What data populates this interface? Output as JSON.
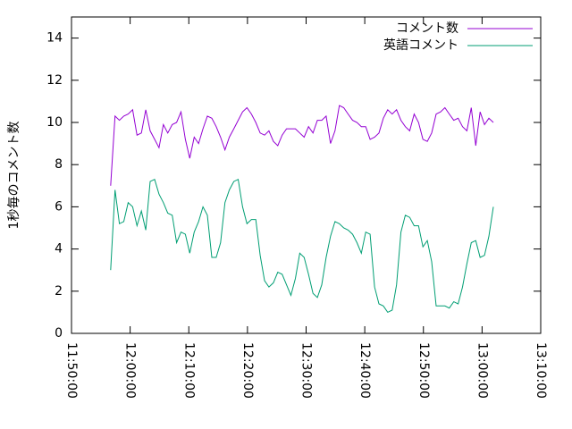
{
  "chart_data": {
    "type": "line",
    "ylabel": "1秒毎のコメント数",
    "x": [
      "11:56:40",
      "11:57:25",
      "11:58:10",
      "11:58:55",
      "11:59:40",
      "12:00:25",
      "12:01:10",
      "12:01:55",
      "12:02:40",
      "12:03:25",
      "12:04:10",
      "12:04:55",
      "12:05:40",
      "12:06:25",
      "12:07:10",
      "12:07:55",
      "12:08:40",
      "12:09:25",
      "12:10:10",
      "12:10:55",
      "12:11:40",
      "12:12:25",
      "12:13:10",
      "12:13:55",
      "12:14:40",
      "12:15:25",
      "12:16:10",
      "12:16:55",
      "12:17:40",
      "12:18:25",
      "12:19:10",
      "12:19:55",
      "12:20:40",
      "12:21:25",
      "12:22:10",
      "12:22:55",
      "12:23:40",
      "12:24:25",
      "12:25:10",
      "12:25:55",
      "12:26:40",
      "12:27:25",
      "12:28:10",
      "12:28:55",
      "12:29:40",
      "12:30:25",
      "12:31:10",
      "12:31:55",
      "12:32:40",
      "12:33:25",
      "12:34:10",
      "12:34:55",
      "12:35:40",
      "12:36:25",
      "12:37:10",
      "12:37:55",
      "12:38:40",
      "12:39:25",
      "12:40:10",
      "12:40:55",
      "12:41:40",
      "12:42:25",
      "12:43:10",
      "12:43:55",
      "12:44:40",
      "12:45:25",
      "12:46:10",
      "12:46:55",
      "12:47:40",
      "12:48:25",
      "12:49:10",
      "12:49:55",
      "12:50:40",
      "12:51:25",
      "12:52:10",
      "12:52:55",
      "12:53:40",
      "12:54:25",
      "12:55:10",
      "12:55:55",
      "12:56:40",
      "12:57:25",
      "12:58:10",
      "12:58:55",
      "12:59:40",
      "13:00:25",
      "13:01:10",
      "13:01:55"
    ],
    "series": [
      {
        "name": "コメント数",
        "color": "#9400d3",
        "values": [
          7.0,
          10.3,
          10.1,
          10.3,
          10.4,
          10.6,
          9.4,
          9.5,
          10.6,
          9.6,
          9.2,
          8.8,
          9.9,
          9.5,
          9.9,
          10.0,
          10.5,
          9.2,
          8.3,
          9.3,
          9.0,
          9.7,
          10.3,
          10.2,
          9.8,
          9.3,
          8.7,
          9.3,
          9.7,
          10.1,
          10.5,
          10.7,
          10.4,
          10.0,
          9.5,
          9.4,
          9.6,
          9.1,
          8.9,
          9.4,
          9.7,
          9.7,
          9.7,
          9.5,
          9.3,
          9.8,
          9.5,
          10.1,
          10.1,
          10.3,
          9.0,
          9.6,
          10.8,
          10.7,
          10.4,
          10.1,
          10.0,
          9.8,
          9.8,
          9.2,
          9.3,
          9.5,
          10.2,
          10.6,
          10.4,
          10.6,
          10.1,
          9.8,
          9.6,
          10.4,
          10.0,
          9.2,
          9.1,
          9.5,
          10.4,
          10.5,
          10.7,
          10.4,
          10.1,
          10.2,
          9.8,
          9.6,
          10.7,
          8.9,
          10.5,
          9.9,
          10.2,
          10.0
        ]
      },
      {
        "name": "英語コメント",
        "color": "#009e73",
        "values": [
          3.0,
          6.8,
          5.2,
          5.3,
          6.2,
          6.0,
          5.1,
          5.8,
          4.9,
          7.2,
          7.3,
          6.6,
          6.2,
          5.7,
          5.6,
          4.3,
          4.8,
          4.7,
          3.8,
          4.8,
          5.3,
          6.0,
          5.6,
          3.6,
          3.6,
          4.3,
          6.2,
          6.8,
          7.2,
          7.3,
          6.0,
          5.2,
          5.4,
          5.4,
          3.7,
          2.5,
          2.2,
          2.4,
          2.9,
          2.8,
          2.3,
          1.8,
          2.6,
          3.8,
          3.6,
          2.8,
          1.9,
          1.7,
          2.3,
          3.6,
          4.6,
          5.3,
          5.2,
          5.0,
          4.9,
          4.7,
          4.3,
          3.8,
          4.8,
          4.7,
          2.2,
          1.4,
          1.3,
          1.0,
          1.1,
          2.3,
          4.8,
          5.6,
          5.5,
          5.1,
          5.1,
          4.1,
          4.4,
          3.4,
          1.3,
          1.3,
          1.3,
          1.2,
          1.5,
          1.4,
          2.2,
          3.3,
          4.3,
          4.4,
          3.6,
          3.7,
          4.6,
          6.0
        ]
      }
    ],
    "xlim": [
      "11:50:00",
      "13:10:00"
    ],
    "xticks": [
      "11:50:00",
      "12:00:00",
      "12:10:00",
      "12:20:00",
      "12:30:00",
      "12:40:00",
      "12:50:00",
      "13:00:00",
      "13:10:00"
    ],
    "ylim": [
      0,
      15
    ],
    "yticks": [
      0,
      2,
      4,
      6,
      8,
      10,
      12,
      14
    ],
    "legend": "top-right"
  }
}
